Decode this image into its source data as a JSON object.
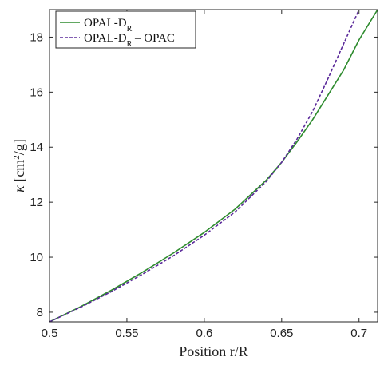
{
  "chart_data": {
    "type": "line",
    "xlabel": "Position r/R",
    "ylabel": "κ [cm²/g]",
    "ylabel_parts": {
      "symbol": "κ",
      "unit_prefix": "[cm",
      "unit_exp": "2",
      "unit_suffix": "/g]"
    },
    "xlim": [
      0.5,
      0.712
    ],
    "ylim": [
      7.65,
      19.0
    ],
    "x_ticks": [
      0.5,
      0.55,
      0.6,
      0.65,
      0.7
    ],
    "x_tick_labels": [
      "0.5",
      "0.55",
      "0.6",
      "0.65",
      "0.7"
    ],
    "y_ticks": [
      8,
      10,
      12,
      14,
      16,
      18
    ],
    "y_tick_labels": [
      "8",
      "10",
      "12",
      "14",
      "16",
      "18"
    ],
    "grid": false,
    "legend_position": "top-left",
    "series": [
      {
        "name": "OPAL-D_R",
        "label_base": "OPAL-D",
        "label_sub": "R",
        "label_suffix": "",
        "color": "#2e8b2e",
        "style": "solid",
        "x": [
          0.5,
          0.52,
          0.54,
          0.56,
          0.58,
          0.6,
          0.62,
          0.64,
          0.65,
          0.66,
          0.67,
          0.68,
          0.69,
          0.7,
          0.712
        ],
        "y": [
          7.65,
          8.2,
          8.8,
          9.45,
          10.15,
          10.9,
          11.75,
          12.8,
          13.45,
          14.2,
          15.0,
          15.9,
          16.8,
          17.9,
          19.0
        ]
      },
      {
        "name": "OPAL-D_R – OPAC",
        "label_base": "OPAL-D",
        "label_sub": "R",
        "label_suffix": " – OPAC",
        "color": "#5b2a9a",
        "style": "dashed",
        "x": [
          0.5,
          0.52,
          0.54,
          0.56,
          0.58,
          0.6,
          0.62,
          0.64,
          0.65,
          0.66,
          0.67,
          0.68,
          0.69,
          0.7
        ],
        "y": [
          7.65,
          8.18,
          8.75,
          9.38,
          10.05,
          10.8,
          11.65,
          12.75,
          13.45,
          14.3,
          15.3,
          16.5,
          17.75,
          19.0
        ]
      }
    ]
  }
}
